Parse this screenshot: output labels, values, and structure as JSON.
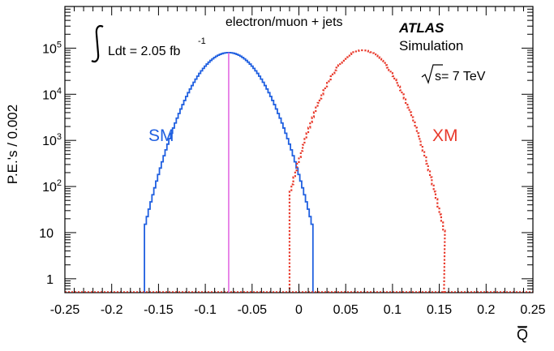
{
  "chart_data": {
    "type": "line",
    "title": "",
    "xlabel": "Q̅",
    "ylabel": "P.E.'s / 0.002",
    "xlim": [
      -0.25,
      0.25
    ],
    "ylim": [
      0.5,
      800000
    ],
    "y_scale": "log",
    "x_ticks": [
      -0.25,
      -0.2,
      -0.15,
      -0.1,
      -0.05,
      0,
      0.05,
      0.1,
      0.15,
      0.2,
      0.25
    ],
    "x_tick_labels": [
      "-0.25",
      "-0.2",
      "-0.15",
      "-0.1",
      "-0.05",
      "0",
      "0.05",
      "0.1",
      "0.15",
      "0.2",
      "0.25"
    ],
    "y_ticks": [
      1,
      10,
      100,
      1000,
      10000,
      100000
    ],
    "y_tick_labels": [
      {
        "base": "1",
        "exp": ""
      },
      {
        "base": "10",
        "exp": ""
      },
      {
        "base": "10",
        "exp": "2"
      },
      {
        "base": "10",
        "exp": "3"
      },
      {
        "base": "10",
        "exp": "4"
      },
      {
        "base": "10",
        "exp": "5"
      }
    ],
    "grid": false,
    "bin_width": 0.002,
    "series": [
      {
        "name": "SM",
        "color": "#1f5fe0",
        "style": "solid",
        "peak_x": -0.075,
        "peak_y": 80000,
        "sigma": 0.0215,
        "range": [
          -0.165,
          0.015
        ]
      },
      {
        "name": "XM",
        "color": "#e8382a",
        "style": "dotted",
        "peak_x": 0.068,
        "peak_y": 90000,
        "sigma": 0.0205,
        "range": [
          -0.01,
          0.155
        ]
      }
    ],
    "reference_line": {
      "x": -0.075,
      "color": "#e060e0"
    },
    "annotations": {
      "channel": "electron/muon + jets",
      "atlas": "ATLAS",
      "simulation": "Simulation",
      "luminosity": "Ldt = 2.05 fb",
      "luminosity_exp": "-1",
      "energy": "s= 7 TeV",
      "sm_label": "SM",
      "xm_label": "XM"
    }
  }
}
